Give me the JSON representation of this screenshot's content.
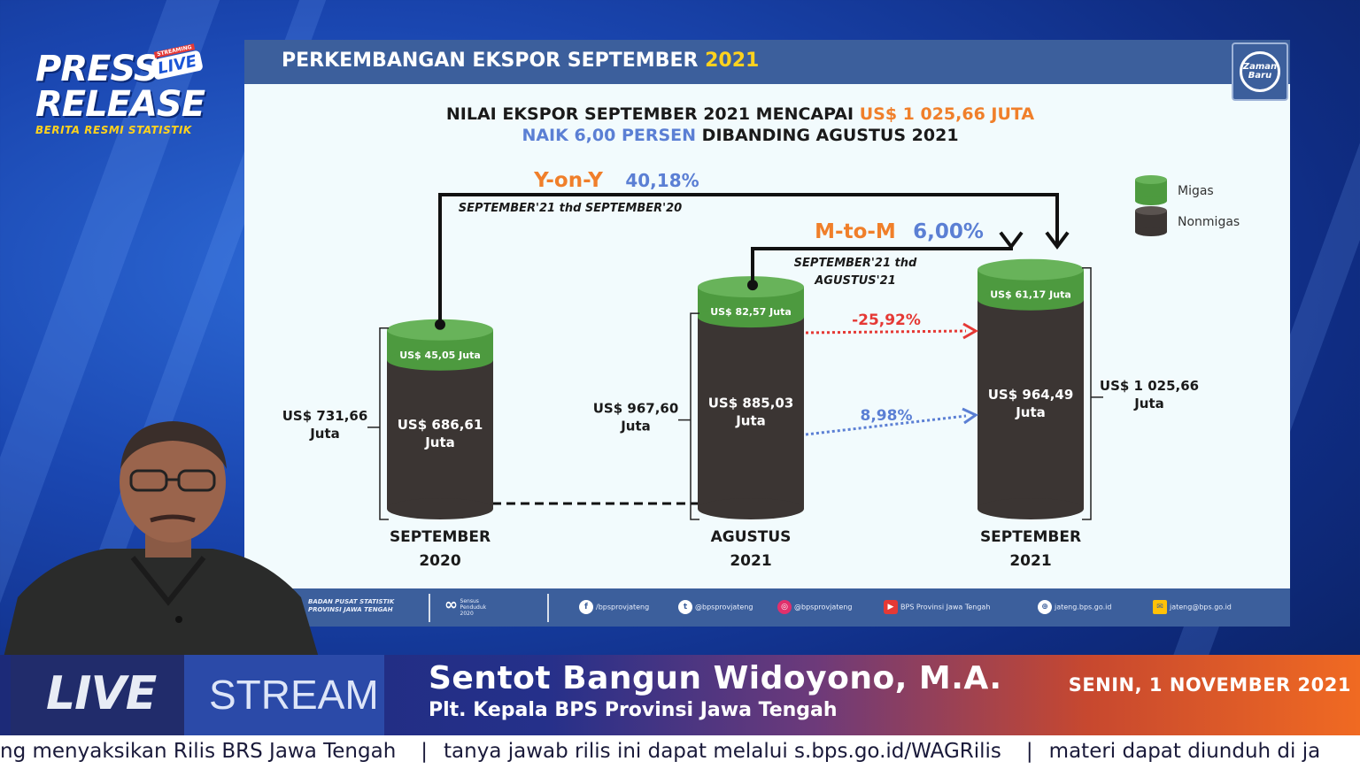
{
  "logo": {
    "press": "PRESS",
    "release": "RELEASE",
    "live_badge": "LIVE",
    "streaming_badge": "STREAMING",
    "subtitle": "BERITA RESMI STATISTIK"
  },
  "slide": {
    "title_prefix": "PERKEMBANGAN EKSPOR SEPTEMBER ",
    "title_year": "2021",
    "corner_logo_text": "Zaman Baru",
    "headline": {
      "line1_prefix": "NILAI EKSPOR SEPTEMBER 2021 MENCAPAI ",
      "line1_value": "US$ 1 025,66 JUTA",
      "line2_highlight": "NAIK 6,00 PERSEN",
      "line2_suffix": " DIBANDING AGUSTUS 2021"
    },
    "footer": {
      "bps": "BADAN PUSAT STATISTIK\nPROVINSI JAWA TENGAH",
      "census_label": "Sensus Penduduk 2020",
      "facebook": "/bpsprovjateng",
      "twitter": "@bpsprovjateng",
      "instagram": "@bpsprovjateng",
      "youtube": "BPS Provinsi Jawa Tengah",
      "web": "jateng.bps.go.id",
      "email": "jateng@bps.go.id"
    }
  },
  "chart_data": {
    "type": "bar",
    "stacked": true,
    "categories": [
      "SEPTEMBER 2020",
      "AGUSTUS 2021",
      "SEPTEMBER 2021"
    ],
    "category_lines": [
      [
        "SEPTEMBER",
        "2020"
      ],
      [
        "AGUSTUS",
        "2021"
      ],
      [
        "SEPTEMBER",
        "2021"
      ]
    ],
    "series": [
      {
        "name": "Nonmigas",
        "color": "#3b3533",
        "values": [
          686.61,
          885.03,
          964.49
        ],
        "labels": [
          [
            "US$ 686,61",
            "Juta"
          ],
          [
            "US$ 885,03",
            "Juta"
          ],
          [
            "US$ 964,49",
            "Juta"
          ]
        ]
      },
      {
        "name": "Migas",
        "color": "#4d9a3f",
        "values": [
          45.05,
          82.57,
          61.17
        ],
        "labels": [
          "US$ 45,05 Juta",
          "US$ 82,57 Juta",
          "US$ 61,17 Juta"
        ]
      }
    ],
    "totals": [
      731.66,
      967.6,
      1025.66
    ],
    "total_labels": [
      [
        "US$ 731,66",
        "Juta"
      ],
      [
        "US$ 967,60",
        "Juta"
      ],
      [
        "US$ 1 025,66",
        "Juta"
      ]
    ],
    "legend": {
      "position": "top-right",
      "items": [
        "Migas",
        "Nonmigas"
      ]
    },
    "annotations": {
      "yoy_label": "Y-on-Y",
      "yoy_value": "40,18%",
      "yoy_note": "SEPTEMBER'21 thd SEPTEMBER'20",
      "mtm_label": "M-to-M",
      "mtm_value": "6,00%",
      "mtm_note": [
        "SEPTEMBER'21 thd",
        "AGUSTUS'21"
      ],
      "migas_change": "-25,92%",
      "nonmigas_change": "8,98%"
    },
    "colors": {
      "migas": "#4d9a3f",
      "nonmigas": "#3b3533",
      "orange": "#f07f2a",
      "blue": "#5b7fd4",
      "red": "#e53935"
    }
  },
  "lower_third": {
    "live": "LIVE",
    "stream": "STREAM",
    "name": "Sentot Bangun Widoyono, M.A.",
    "title": "Plt. Kepala BPS Provinsi Jawa Tengah",
    "date": "SENIN, 1 NOVEMBER 2021"
  },
  "ticker": {
    "items": [
      "ng menyaksikan Rilis BRS Jawa Tengah",
      "tanya jawab rilis ini dapat melalui s.bps.go.id/WAGRilis",
      "materi dapat diunduh di ja"
    ]
  }
}
